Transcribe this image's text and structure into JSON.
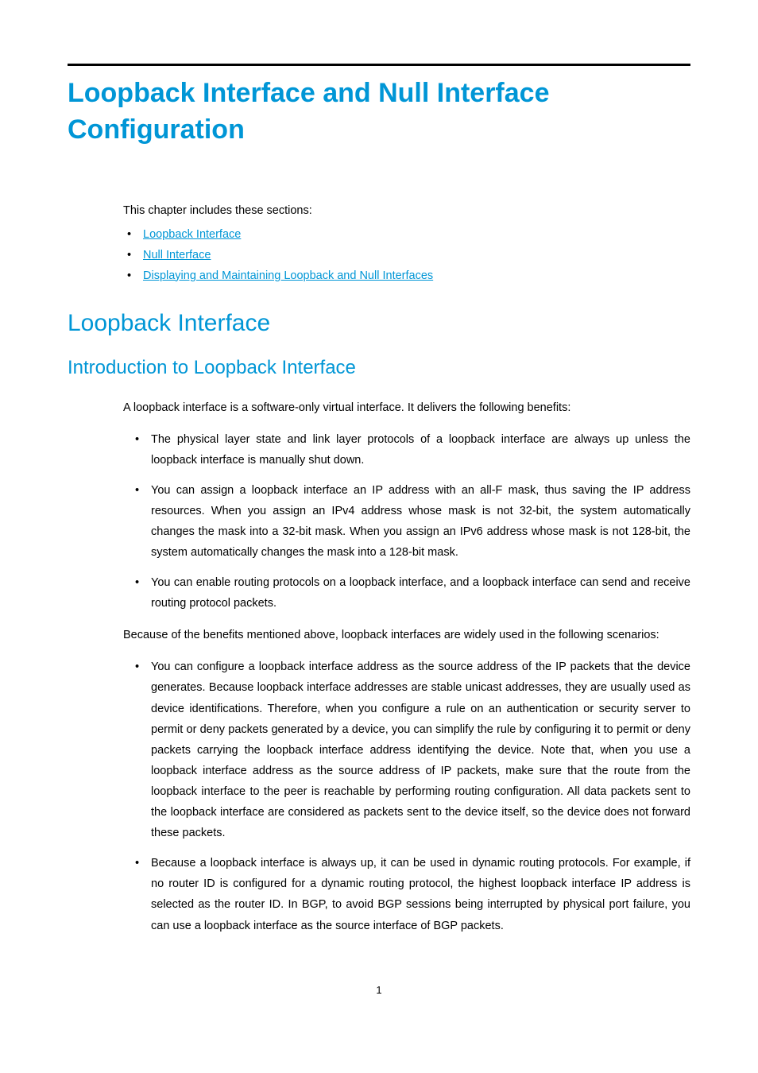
{
  "page": {
    "title": "Loopback Interface and Null Interface Configuration",
    "intro": "This chapter includes these sections:",
    "toc": [
      {
        "label": "Loopback Interface"
      },
      {
        "label": "Null Interface"
      },
      {
        "label": "Displaying and Maintaining Loopback and Null Interfaces"
      }
    ],
    "section1": {
      "heading": "Loopback Interface",
      "subheading": "Introduction to Loopback Interface",
      "lead": "A loopback interface is a software-only virtual interface. It delivers the following benefits:",
      "benefits": [
        "The physical layer state and link layer protocols of a loopback interface are always up unless the loopback interface is manually shut down.",
        "You can assign a loopback interface an IP address with an all-F mask, thus saving the IP address resources. When you assign an IPv4 address whose mask is not 32-bit, the system automatically changes the mask into a 32-bit mask. When you assign an IPv6 address whose mask is not 128-bit, the system automatically changes the mask into a 128-bit mask.",
        "You can enable routing protocols on a loopback interface, and a loopback interface can send and receive routing protocol packets."
      ],
      "scenarios_intro": "Because of the benefits mentioned above, loopback interfaces are widely used in the following scenarios:",
      "scenarios": [
        "You can configure a loopback interface address as the source address of the IP packets that the device generates. Because loopback interface addresses are stable unicast addresses, they are usually used as device identifications. Therefore, when you configure a rule on an authentication or security server to permit or deny packets generated by a device, you can simplify the rule by configuring it to permit or deny packets carrying the loopback interface address identifying the device. Note that, when you use a loopback interface address as the source address of IP packets, make sure that the route from the loopback interface to the peer is reachable by performing routing configuration. All data packets sent to the loopback interface are considered as packets sent to the device itself, so the device does not forward these packets.",
        "Because a loopback interface is always up, it can be used in dynamic routing protocols. For example, if no router ID is configured for a dynamic routing protocol, the highest loopback interface IP address is selected as the router ID. In BGP, to avoid BGP sessions being interrupted by physical port failure, you can use a loopback interface as the source interface of BGP packets."
      ]
    },
    "page_number": "1"
  },
  "colors": {
    "accent": "#0096d6",
    "text": "#000000",
    "background": "#ffffff"
  }
}
